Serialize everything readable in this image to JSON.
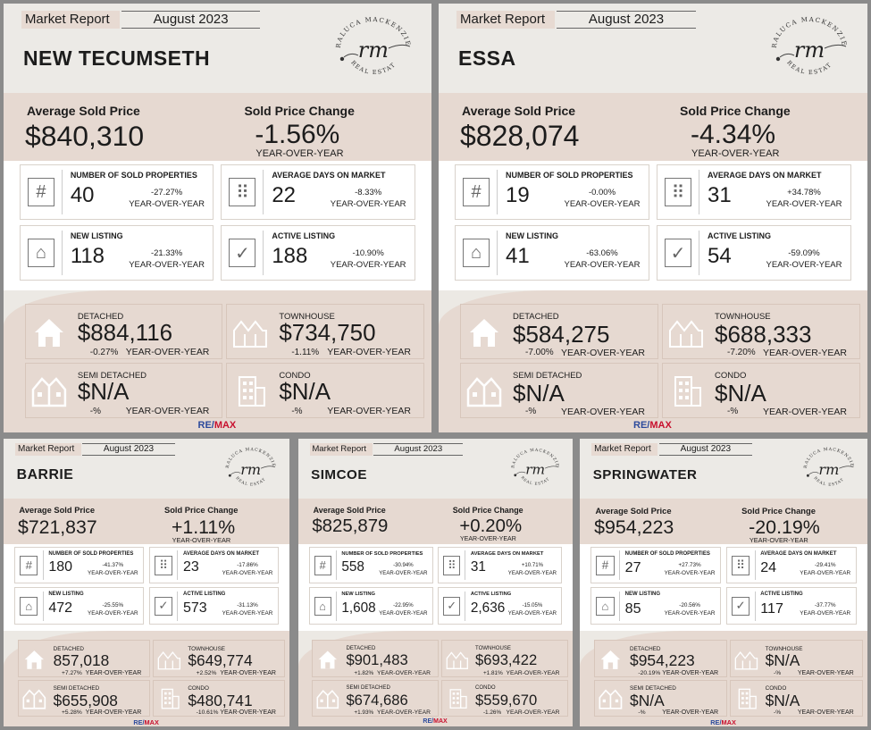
{
  "labels": {
    "market_report": "Market Report",
    "month": "August 2023",
    "avg_price": "Average Sold Price",
    "price_change": "Sold Price Change",
    "yoy": "YEAR-OVER-YEAR",
    "sold": "NUMBER OF SOLD PROPERTIES",
    "dom": "AVERAGE DAYS ON MARKET",
    "new": "NEW LISTING",
    "active": "ACTIVE LISTING",
    "detached": "DETACHED",
    "townhouse": "TOWNHOUSE",
    "semi": "SEMI DETACHED",
    "condo": "CONDO",
    "logo_top": "RALUCA MACKENZIE",
    "logo_mid": "rm",
    "logo_bottom": "REAL ESTATE",
    "remax_re": "RE/",
    "remax_max": "MAX"
  },
  "reports": [
    {
      "city": "NEW TECUMSETH",
      "avg_price": "$840,310",
      "price_change": "-1.56%",
      "sold": "40",
      "sold_chg": "-27.27%",
      "dom": "22",
      "dom_chg": "-8.33%",
      "new": "118",
      "new_chg": "-21.33%",
      "active": "188",
      "active_chg": "-10.90%",
      "detached": "$884,116",
      "detached_chg": "-0.27%",
      "townhouse": "$734,750",
      "townhouse_chg": "-1.11%",
      "semi": "$N/A",
      "semi_chg": "-%",
      "condo": "$N/A",
      "condo_chg": "-%"
    },
    {
      "city": "ESSA",
      "avg_price": "$828,074",
      "price_change": "-4.34%",
      "sold": "19",
      "sold_chg": "-0.00%",
      "dom": "31",
      "dom_chg": "+34.78%",
      "new": "41",
      "new_chg": "-63.06%",
      "active": "54",
      "active_chg": "-59.09%",
      "detached": "$584,275",
      "detached_chg": "-7.00%",
      "townhouse": "$688,333",
      "townhouse_chg": "-7.20%",
      "semi": "$N/A",
      "semi_chg": "-%",
      "condo": "$N/A",
      "condo_chg": "-%"
    },
    {
      "city": "BARRIE",
      "avg_price": "$721,837",
      "price_change": "+1.11%",
      "sold": "180",
      "sold_chg": "-41.37%",
      "dom": "23",
      "dom_chg": "-17.86%",
      "new": "472",
      "new_chg": "-25.55%",
      "active": "573",
      "active_chg": "-31.13%",
      "detached": "857,018",
      "detached_chg": "+7.27%",
      "townhouse": "$649,774",
      "townhouse_chg": "+2.52%",
      "semi": "$655,908",
      "semi_chg": "+5.28%",
      "condo": "$480,741",
      "condo_chg": "-10.61%"
    },
    {
      "city": "SIMCOE",
      "avg_price": "$825,879",
      "price_change": "+0.20%",
      "sold": "558",
      "sold_chg": "-30.94%",
      "dom": "31",
      "dom_chg": "+10.71%",
      "new": "1,608",
      "new_chg": "-22.95%",
      "active": "2,636",
      "active_chg": "-15.05%",
      "detached": "$901,483",
      "detached_chg": "+1.82%",
      "townhouse": "$693,422",
      "townhouse_chg": "+1.81%",
      "semi": "$674,686",
      "semi_chg": "+1.93%",
      "condo": "$559,670",
      "condo_chg": "-1.26%"
    },
    {
      "city": "SPRINGWATER",
      "avg_price": "$954,223",
      "price_change": "-20.19%",
      "sold": "27",
      "sold_chg": "+27.73%",
      "dom": "24",
      "dom_chg": "-29.41%",
      "new": "85",
      "new_chg": "-20.56%",
      "active": "117",
      "active_chg": "-37.77%",
      "detached": "$954,223",
      "detached_chg": "-20.19%",
      "townhouse": "$N/A",
      "townhouse_chg": "-%",
      "semi": "$N/A",
      "semi_chg": "-%",
      "condo": "$N/A",
      "condo_chg": "-%"
    }
  ]
}
